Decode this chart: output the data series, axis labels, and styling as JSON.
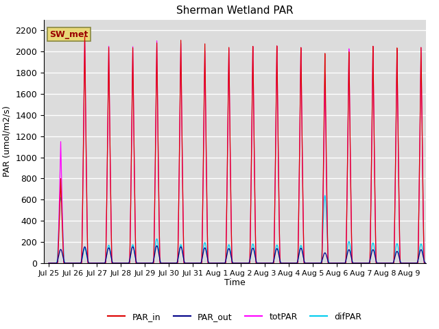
{
  "title": "Sherman Wetland PAR",
  "ylabel": "PAR (umol/m2/s)",
  "xlabel": "Time",
  "annotation": "SW_met",
  "annotation_color": "#990000",
  "annotation_bg": "#E8D878",
  "bg_color": "#DCDCDC",
  "series_colors": {
    "PAR_in": "#DD0000",
    "PAR_out": "#000088",
    "totPAR": "#FF00FF",
    "difPAR": "#00CCEE"
  },
  "ylim": [
    0,
    2300
  ],
  "yticks": [
    0,
    200,
    400,
    600,
    800,
    1000,
    1200,
    1400,
    1600,
    1800,
    2000,
    2200
  ],
  "xtick_labels": [
    "Jul 25",
    "Jul 26",
    "Jul 27",
    "Jul 28",
    "Jul 29",
    "Jul 30",
    "Jul 31",
    "Aug 1",
    "Aug 2",
    "Aug 3",
    "Aug 4",
    "Aug 5",
    "Aug 6",
    "Aug 7",
    "Aug 8",
    "Aug 9"
  ],
  "daily_peaks_PAR_in": [
    800,
    2150,
    2050,
    2050,
    2100,
    2130,
    2100,
    2070,
    2080,
    2080,
    2060,
    2000,
    2010,
    2060,
    2040,
    2040
  ],
  "daily_peaks_totPAR": [
    1150,
    2180,
    2060,
    2060,
    2120,
    2100,
    2030,
    2060,
    2080,
    2080,
    2060,
    1800,
    2040,
    2060,
    2020,
    2040
  ],
  "daily_peaks_PAR_out": [
    130,
    155,
    145,
    155,
    165,
    155,
    145,
    138,
    142,
    138,
    142,
    98,
    128,
    128,
    112,
    128
  ],
  "daily_peaks_difPAR": [
    620,
    140,
    170,
    175,
    230,
    175,
    195,
    175,
    182,
    172,
    168,
    640,
    205,
    192,
    185,
    182
  ],
  "figsize": [
    6.4,
    4.8
  ],
  "dpi": 100
}
